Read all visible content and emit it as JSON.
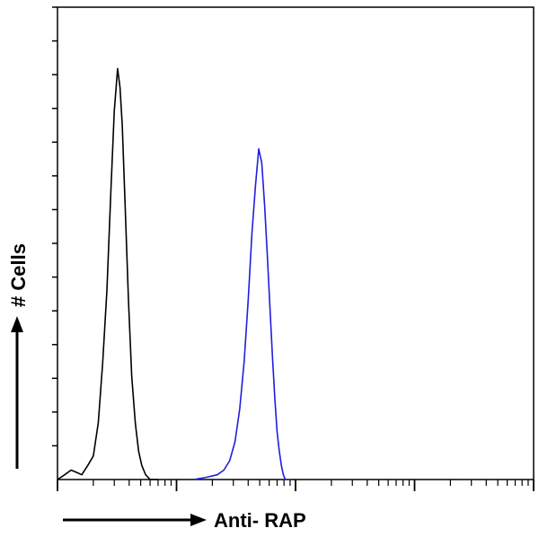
{
  "chart_data": {
    "type": "line",
    "title": "",
    "xlabel": "Anti- RAP",
    "ylabel": "# Cells",
    "x_scale": "log",
    "xlim": [
      0,
      10000
    ],
    "ylim": [
      0,
      100
    ],
    "grid": false,
    "legend": "none",
    "series": [
      {
        "color": "#000000",
        "points": [
          [
            1.0,
            0
          ],
          [
            1.15,
            1
          ],
          [
            1.3,
            2
          ],
          [
            1.45,
            1.5
          ],
          [
            1.6,
            1
          ],
          [
            1.8,
            3
          ],
          [
            2.0,
            5
          ],
          [
            2.2,
            12
          ],
          [
            2.4,
            25
          ],
          [
            2.6,
            40
          ],
          [
            2.8,
            60
          ],
          [
            3.0,
            78
          ],
          [
            3.2,
            87
          ],
          [
            3.35,
            83
          ],
          [
            3.5,
            75
          ],
          [
            3.7,
            58
          ],
          [
            3.95,
            38
          ],
          [
            4.2,
            22
          ],
          [
            4.5,
            12
          ],
          [
            4.8,
            6
          ],
          [
            5.1,
            3
          ],
          [
            5.5,
            1
          ],
          [
            6.0,
            0
          ],
          [
            7.0,
            0
          ]
        ]
      },
      {
        "color": "#1f1fdc",
        "points": [
          [
            14,
            0
          ],
          [
            18,
            0.5
          ],
          [
            22,
            1
          ],
          [
            25,
            2
          ],
          [
            28,
            4
          ],
          [
            31,
            8
          ],
          [
            34,
            15
          ],
          [
            37,
            25
          ],
          [
            40,
            38
          ],
          [
            43,
            52
          ],
          [
            46,
            62
          ],
          [
            49,
            70
          ],
          [
            52,
            67
          ],
          [
            55,
            58
          ],
          [
            58,
            47
          ],
          [
            61,
            36
          ],
          [
            64,
            26
          ],
          [
            67,
            17
          ],
          [
            70,
            10
          ],
          [
            73,
            6
          ],
          [
            76,
            3
          ],
          [
            79,
            1
          ],
          [
            82,
            0
          ],
          [
            90,
            0
          ]
        ]
      }
    ]
  }
}
